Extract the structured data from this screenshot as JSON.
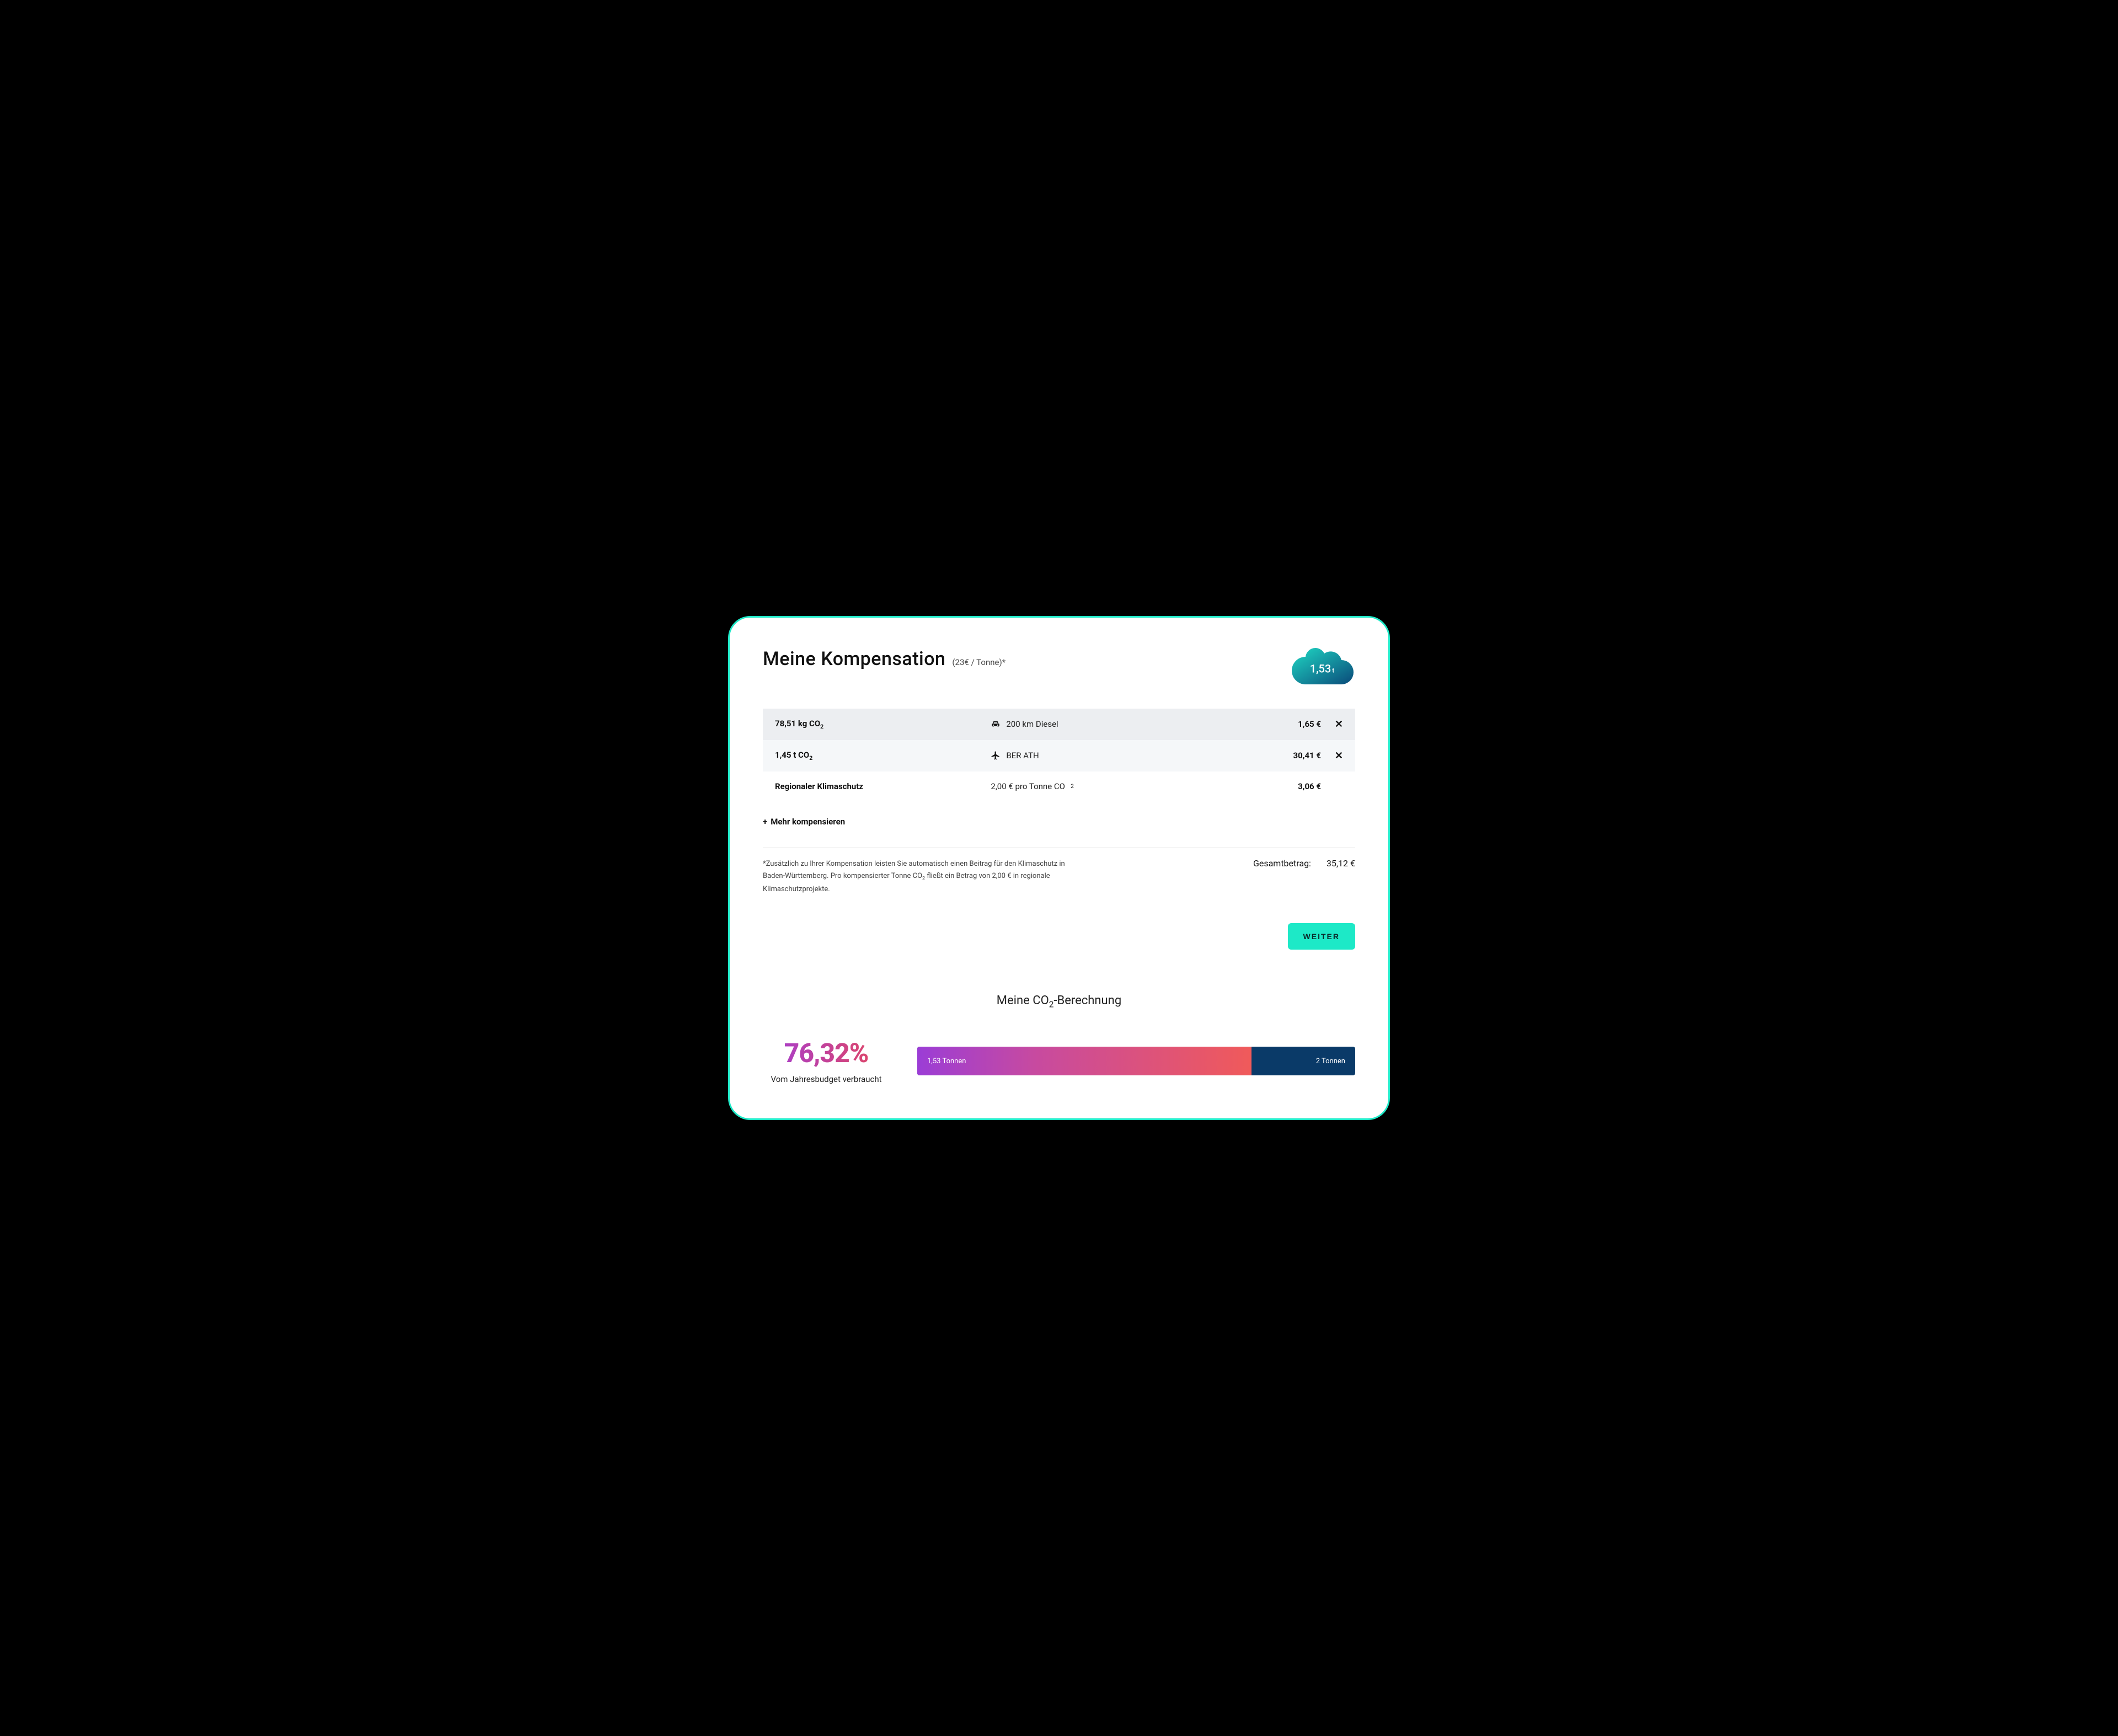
{
  "header": {
    "title": "Meine Kompensation",
    "subtitle": "(23€ / Tonne)*",
    "cloud_value": "1,53",
    "cloud_unit": "t",
    "cloud_gradient_start": "#1fd9c4",
    "cloud_gradient_end": "#0a4a7a"
  },
  "rows": [
    {
      "amount_value": "78,51 kg CO",
      "amount_sub": "2",
      "icon": "car",
      "desc": "200 km Diesel",
      "price": "1,65 €",
      "closable": true,
      "bg": "dark"
    },
    {
      "amount_value": "1,45 t CO",
      "amount_sub": "2",
      "icon": "plane",
      "desc": "BER ATH",
      "price": "30,41 €",
      "closable": true,
      "bg": "light"
    },
    {
      "amount_value": "Regionaler Klimaschutz",
      "amount_sub": "",
      "icon": "",
      "desc_pre": "2,00 € pro Tonne CO",
      "desc_sub": "2",
      "price": "3,06 €",
      "closable": false,
      "bg": "white"
    }
  ],
  "more_label": "Mehr kompensieren",
  "footnote_pre": "*Zusätzlich zu Ihrer Kompensation leisten Sie automatisch einen Beitrag für den Klimaschutz in Baden-Württemberg. Pro kompensierter Tonne CO",
  "footnote_sub": "2",
  "footnote_post": " fließt ein Betrag von 2,00 € in regionale Klimaschutzprojekte.",
  "total_label": "Gesamtbetrag:",
  "total_value": "35,12 €",
  "button_label": "WEITER",
  "calc": {
    "title_pre": "Meine CO",
    "title_sub": "2",
    "title_post": "-Berechnung",
    "percent": "76,32%",
    "percent_sub": "Vom Jahresbudget verbraucht",
    "bar_fill_pct": 76.32,
    "bar_left_label": "1,53 Tonnen",
    "bar_right_label": "2 Tonnen",
    "bar_bg_color": "#0a3a68",
    "bar_gradient_start": "#9b3dd6",
    "bar_gradient_mid": "#c74aa0",
    "bar_gradient_end": "#f05a5a"
  },
  "colors": {
    "accent": "#1de9c7",
    "text": "#111111",
    "row_dark": "#eceef1",
    "row_light": "#f5f7f9"
  }
}
